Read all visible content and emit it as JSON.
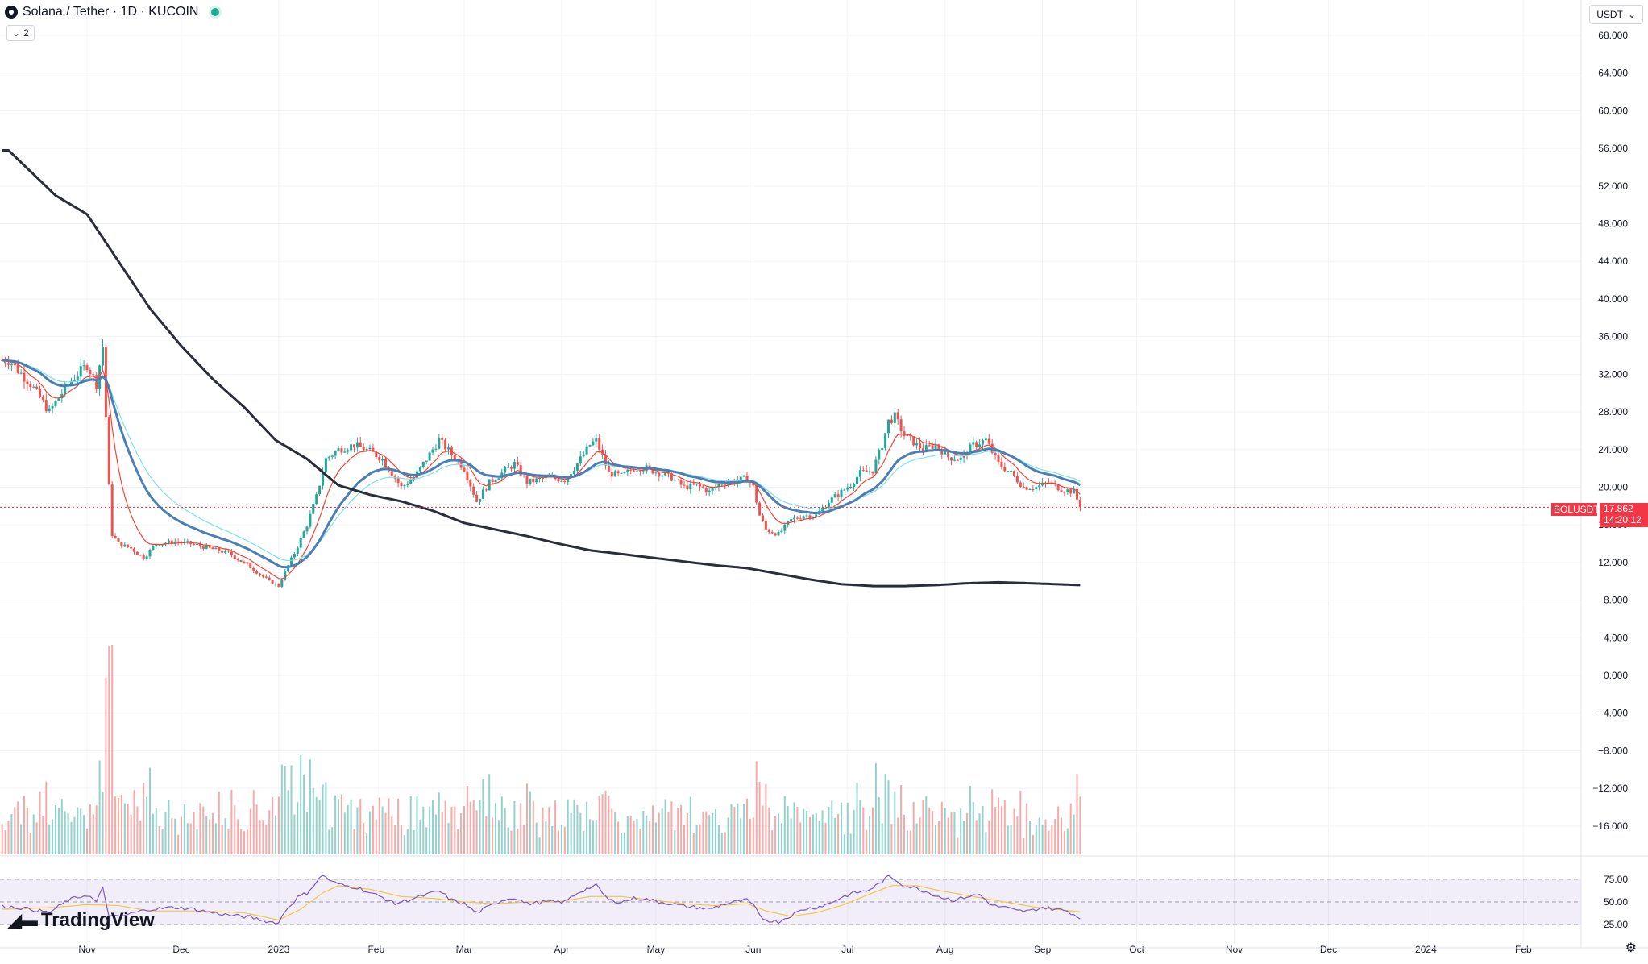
{
  "header": {
    "symbol_title": "Solana / Tether · 1D · KUCOIN",
    "collapse_count": "2",
    "currency": "USDT"
  },
  "price_tag": {
    "symbol": "SOLUSDT",
    "price": "17.862",
    "countdown": "14:20:12"
  },
  "branding": {
    "logo_text": "TradingView"
  },
  "colors": {
    "up": "#26a69a",
    "down": "#ef5350",
    "ma_fast": "#f44336",
    "ma_mid": "#4a7fb5",
    "ma_slow": "#80deea",
    "ma_long": "#2a2e39",
    "rsi": "#7e57c2",
    "rsi_ma": "#f2c744",
    "last_price": "#f23645"
  },
  "chart_data": {
    "type": "candlestick",
    "symbol": "Solana / Tether",
    "interval": "1D",
    "exchange": "KUCOIN",
    "price_axis": {
      "ticks": [
        "68.000",
        "64.000",
        "60.000",
        "56.000",
        "52.000",
        "48.000",
        "44.000",
        "40.000",
        "36.000",
        "32.000",
        "28.000",
        "24.000",
        "20.000",
        "16.000",
        "12.000",
        "8.000",
        "4.000",
        "0.000",
        "−4.000",
        "−8.000",
        "−12.000",
        "−16.000"
      ],
      "range": [
        -18.9,
        69.8
      ]
    },
    "rsi_axis": {
      "ticks": [
        "75.00",
        "50.00",
        "25.00"
      ],
      "range": [
        22,
        82
      ],
      "band": [
        30,
        70
      ]
    },
    "time_axis": {
      "labels": [
        "Nov",
        "Dec",
        "2023",
        "Feb",
        "Mar",
        "Apr",
        "May",
        "Jun",
        "Jul",
        "Aug",
        "Sep",
        "Oct",
        "Nov",
        "Dec",
        "2024",
        "Feb"
      ],
      "positions_days": [
        0,
        30,
        61,
        92,
        120,
        151,
        181,
        212,
        242,
        273,
        304,
        334,
        365,
        395,
        426,
        457
      ]
    },
    "last_price": 17.862,
    "price_keypoints": [
      [
        -25,
        33.5
      ],
      [
        -18,
        31
      ],
      [
        -12,
        28
      ],
      [
        -6,
        31
      ],
      [
        0,
        33
      ],
      [
        3,
        31
      ],
      [
        5,
        35
      ],
      [
        7,
        20
      ],
      [
        8,
        15
      ],
      [
        10,
        14
      ],
      [
        14,
        13.5
      ],
      [
        18,
        12.5
      ],
      [
        22,
        14
      ],
      [
        28,
        14.2
      ],
      [
        33,
        14
      ],
      [
        39,
        13.5
      ],
      [
        45,
        13
      ],
      [
        52,
        11.5
      ],
      [
        58,
        10
      ],
      [
        61,
        9.5
      ],
      [
        63,
        11
      ],
      [
        66,
        13
      ],
      [
        70,
        16
      ],
      [
        73,
        19
      ],
      [
        76,
        23
      ],
      [
        80,
        24
      ],
      [
        85,
        24.5
      ],
      [
        90,
        23.8
      ],
      [
        94,
        23
      ],
      [
        96,
        22
      ],
      [
        100,
        20
      ],
      [
        104,
        21
      ],
      [
        108,
        23
      ],
      [
        112,
        25
      ],
      [
        116,
        23.5
      ],
      [
        120,
        22
      ],
      [
        124,
        18.5
      ],
      [
        128,
        20.5
      ],
      [
        132,
        21.5
      ],
      [
        136,
        22.5
      ],
      [
        140,
        20.5
      ],
      [
        146,
        21
      ],
      [
        152,
        20.8
      ],
      [
        156,
        22.5
      ],
      [
        160,
        24.5
      ],
      [
        162,
        25
      ],
      [
        166,
        21.5
      ],
      [
        170,
        21.2
      ],
      [
        174,
        22
      ],
      [
        178,
        22
      ],
      [
        182,
        21.5
      ],
      [
        186,
        21
      ],
      [
        190,
        20
      ],
      [
        194,
        20.2
      ],
      [
        198,
        19.5
      ],
      [
        202,
        20.5
      ],
      [
        206,
        20.6
      ],
      [
        210,
        21
      ],
      [
        212,
        20
      ],
      [
        214,
        17
      ],
      [
        216,
        15.5
      ],
      [
        220,
        15
      ],
      [
        224,
        16.5
      ],
      [
        228,
        17
      ],
      [
        232,
        17
      ],
      [
        236,
        18.5
      ],
      [
        240,
        19.5
      ],
      [
        243,
        20.3
      ],
      [
        246,
        21.5
      ],
      [
        250,
        21.8
      ],
      [
        253,
        24.5
      ],
      [
        255,
        27
      ],
      [
        257,
        27.5
      ],
      [
        260,
        25.5
      ],
      [
        263,
        24.8
      ],
      [
        266,
        24
      ],
      [
        270,
        24.5
      ],
      [
        274,
        23.2
      ],
      [
        278,
        23
      ],
      [
        282,
        24.5
      ],
      [
        286,
        25
      ],
      [
        290,
        22.5
      ],
      [
        294,
        21.5
      ],
      [
        298,
        20
      ],
      [
        302,
        20
      ],
      [
        306,
        20.5
      ],
      [
        310,
        19.8
      ],
      [
        314,
        19.5
      ],
      [
        316,
        17.9
      ]
    ],
    "rsi_keypoints": [
      [
        -25,
        45
      ],
      [
        -18,
        42
      ],
      [
        -12,
        38
      ],
      [
        -6,
        52
      ],
      [
        0,
        58
      ],
      [
        3,
        50
      ],
      [
        5,
        65
      ],
      [
        7,
        35
      ],
      [
        10,
        33
      ],
      [
        15,
        38
      ],
      [
        20,
        42
      ],
      [
        28,
        44
      ],
      [
        34,
        42
      ],
      [
        40,
        38
      ],
      [
        46,
        35
      ],
      [
        52,
        33
      ],
      [
        58,
        28
      ],
      [
        61,
        27
      ],
      [
        63,
        40
      ],
      [
        67,
        55
      ],
      [
        70,
        60
      ],
      [
        73,
        72
      ],
      [
        75,
        80
      ],
      [
        78,
        72
      ],
      [
        82,
        68
      ],
      [
        86,
        66
      ],
      [
        90,
        60
      ],
      [
        94,
        55
      ],
      [
        98,
        48
      ],
      [
        102,
        52
      ],
      [
        108,
        58
      ],
      [
        112,
        62
      ],
      [
        116,
        52
      ],
      [
        120,
        48
      ],
      [
        124,
        38
      ],
      [
        128,
        45
      ],
      [
        132,
        52
      ],
      [
        136,
        55
      ],
      [
        140,
        48
      ],
      [
        146,
        50
      ],
      [
        152,
        50
      ],
      [
        156,
        60
      ],
      [
        160,
        66
      ],
      [
        162,
        68
      ],
      [
        166,
        52
      ],
      [
        170,
        50
      ],
      [
        174,
        54
      ],
      [
        178,
        53
      ],
      [
        182,
        50
      ],
      [
        186,
        48
      ],
      [
        190,
        45
      ],
      [
        194,
        44
      ],
      [
        198,
        42
      ],
      [
        202,
        47
      ],
      [
        206,
        50
      ],
      [
        210,
        52
      ],
      [
        212,
        46
      ],
      [
        214,
        35
      ],
      [
        216,
        30
      ],
      [
        220,
        28
      ],
      [
        224,
        35
      ],
      [
        228,
        42
      ],
      [
        232,
        44
      ],
      [
        236,
        48
      ],
      [
        240,
        55
      ],
      [
        244,
        60
      ],
      [
        248,
        62
      ],
      [
        252,
        70
      ],
      [
        255,
        78
      ],
      [
        257,
        75
      ],
      [
        260,
        68
      ],
      [
        264,
        65
      ],
      [
        268,
        60
      ],
      [
        272,
        55
      ],
      [
        276,
        52
      ],
      [
        280,
        56
      ],
      [
        284,
        58
      ],
      [
        288,
        46
      ],
      [
        292,
        44
      ],
      [
        296,
        40
      ],
      [
        300,
        40
      ],
      [
        304,
        44
      ],
      [
        308,
        42
      ],
      [
        312,
        40
      ],
      [
        316,
        32
      ]
    ],
    "rsi_ma_keypoints": [
      [
        -25,
        42
      ],
      [
        -10,
        44
      ],
      [
        0,
        47
      ],
      [
        10,
        46
      ],
      [
        20,
        40
      ],
      [
        35,
        40
      ],
      [
        50,
        38
      ],
      [
        61,
        30
      ],
      [
        68,
        42
      ],
      [
        75,
        60
      ],
      [
        80,
        68
      ],
      [
        90,
        64
      ],
      [
        100,
        56
      ],
      [
        110,
        54
      ],
      [
        120,
        50
      ],
      [
        130,
        48
      ],
      [
        140,
        50
      ],
      [
        150,
        50
      ],
      [
        160,
        56
      ],
      [
        170,
        56
      ],
      [
        180,
        52
      ],
      [
        190,
        48
      ],
      [
        200,
        46
      ],
      [
        210,
        48
      ],
      [
        216,
        40
      ],
      [
        224,
        34
      ],
      [
        232,
        38
      ],
      [
        240,
        46
      ],
      [
        250,
        60
      ],
      [
        256,
        68
      ],
      [
        264,
        68
      ],
      [
        272,
        62
      ],
      [
        282,
        56
      ],
      [
        292,
        50
      ],
      [
        302,
        44
      ],
      [
        316,
        39
      ]
    ],
    "indicators": [
      {
        "name": "ma-fast",
        "color": "#f44336",
        "smoothing": 0.2
      },
      {
        "name": "ma-slow-cyan",
        "color": "#80deea",
        "smoothing": 0.06
      },
      {
        "name": "ma-mid-blue",
        "color": "#4a7fb5",
        "smoothing": 0.08
      },
      {
        "name": "ma-long",
        "keypoints": [
          [
            -25,
            55.8
          ],
          [
            -10,
            51
          ],
          [
            0,
            49
          ],
          [
            10,
            44
          ],
          [
            20,
            39
          ],
          [
            30,
            35
          ],
          [
            40,
            31.5
          ],
          [
            50,
            28.5
          ],
          [
            60,
            25
          ],
          [
            70,
            23
          ],
          [
            80,
            20.2
          ],
          [
            90,
            19.2
          ],
          [
            100,
            18.5
          ],
          [
            110,
            17.5
          ],
          [
            120,
            16.2
          ],
          [
            130,
            15.5
          ],
          [
            140,
            14.8
          ],
          [
            150,
            14.0
          ],
          [
            160,
            13.3
          ],
          [
            170,
            12.9
          ],
          [
            180,
            12.5
          ],
          [
            190,
            12.1
          ],
          [
            200,
            11.7
          ],
          [
            210,
            11.4
          ],
          [
            220,
            10.8
          ],
          [
            230,
            10.2
          ],
          [
            240,
            9.7
          ],
          [
            250,
            9.5
          ],
          [
            260,
            9.5
          ],
          [
            270,
            9.6
          ],
          [
            280,
            9.8
          ],
          [
            290,
            9.9
          ],
          [
            300,
            9.8
          ],
          [
            316,
            9.6
          ]
        ],
        "color": "#2a2e39"
      }
    ]
  }
}
